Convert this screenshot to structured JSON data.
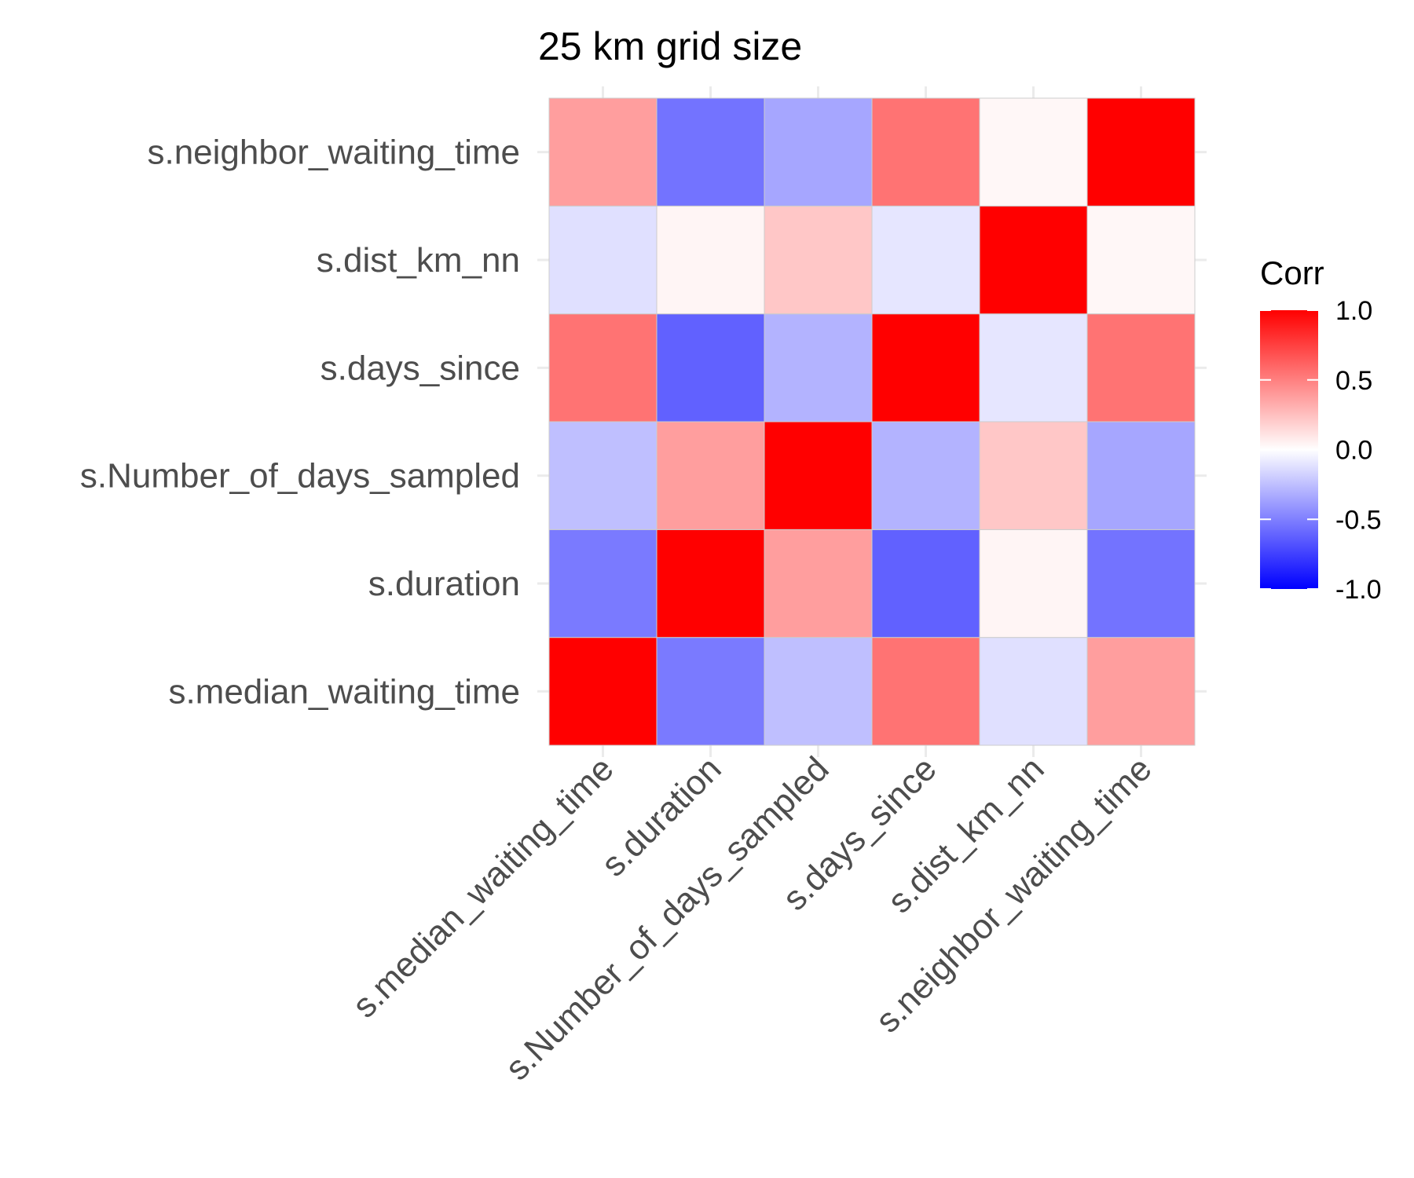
{
  "chart_data": {
    "type": "heatmap",
    "title": "25 km grid size",
    "xlabel": "",
    "ylabel": "",
    "x_categories": [
      "s.median_waiting_time",
      "s.duration",
      "s.Number_of_days_sampled",
      "s.days_since",
      "s.dist_km_nn",
      "s.neighbor_waiting_time"
    ],
    "y_categories": [
      "s.median_waiting_time",
      "s.duration",
      "s.Number_of_days_sampled",
      "s.days_since",
      "s.dist_km_nn",
      "s.neighbor_waiting_time"
    ],
    "values": [
      [
        1.0,
        -0.52,
        -0.25,
        0.55,
        -0.12,
        0.38
      ],
      [
        -0.52,
        1.0,
        0.38,
        -0.62,
        0.04,
        -0.55
      ],
      [
        -0.25,
        0.38,
        1.0,
        -0.3,
        0.22,
        -0.35
      ],
      [
        0.55,
        -0.62,
        -0.3,
        1.0,
        -0.1,
        0.55
      ],
      [
        -0.12,
        0.04,
        0.22,
        -0.1,
        1.0,
        0.03
      ],
      [
        0.38,
        -0.55,
        -0.35,
        0.55,
        0.03,
        1.0
      ]
    ],
    "color_scale": {
      "low": "#0000ff",
      "mid": "#ffffff",
      "high": "#ff0000",
      "limits": [
        -1.0,
        1.0
      ]
    },
    "legend": {
      "title": "Corr",
      "placement": "right",
      "labels": [
        "1.0",
        "0.5",
        "0.0",
        "-0.5",
        "-1.0"
      ],
      "label_values": [
        1.0,
        0.5,
        0.0,
        -0.5,
        -1.0
      ]
    },
    "grid": true
  }
}
